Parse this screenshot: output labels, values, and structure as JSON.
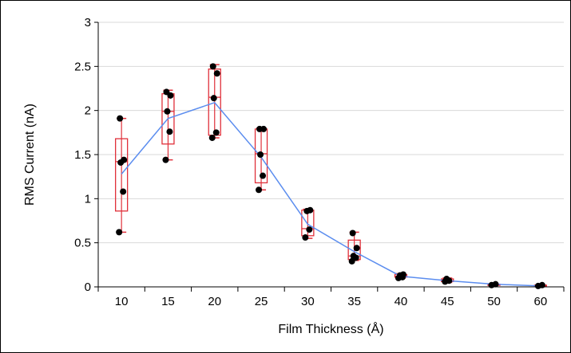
{
  "chart_data": {
    "type": "box",
    "xlabel": "Film Thickness (Å)",
    "ylabel": "RMS Current (nA)",
    "ylim": [
      0,
      3
    ],
    "yticks": [
      0,
      0.5,
      1,
      1.5,
      2,
      2.5,
      3
    ],
    "ytick_labels": [
      "0",
      "0.5",
      "1",
      "1.5",
      "2",
      "2.5",
      "3"
    ],
    "categories": [
      "10",
      "15",
      "20",
      "25",
      "30",
      "35",
      "40",
      "45",
      "50",
      "60"
    ],
    "grid": "horizontal",
    "colors": {
      "box": "#e0303a",
      "mean_line": "#5b8def",
      "points": "#000000",
      "grid": "#d9d9d9"
    },
    "boxes": [
      {
        "category": "10",
        "min": 0.62,
        "q1": 0.86,
        "median": 1.42,
        "q3": 1.68,
        "max": 1.91,
        "mean": 1.28,
        "points": [
          0.62,
          1.08,
          1.41,
          1.44,
          1.91
        ]
      },
      {
        "category": "15",
        "min": 1.44,
        "q1": 1.62,
        "median": 1.99,
        "q3": 2.19,
        "max": 2.23,
        "mean": 1.91,
        "points": [
          1.44,
          1.76,
          1.99,
          2.17,
          2.21
        ]
      },
      {
        "category": "20",
        "min": 1.69,
        "q1": 1.72,
        "median": 2.15,
        "q3": 2.47,
        "max": 2.52,
        "mean": 2.09,
        "points": [
          1.69,
          1.75,
          2.14,
          2.42,
          2.5
        ]
      },
      {
        "category": "25",
        "min": 1.1,
        "q1": 1.18,
        "median": 1.51,
        "q3": 1.79,
        "max": 1.8,
        "mean": 1.47,
        "points": [
          1.1,
          1.26,
          1.5,
          1.79,
          1.79
        ]
      },
      {
        "category": "30",
        "min": 0.55,
        "q1": 0.58,
        "median": 0.66,
        "q3": 0.87,
        "max": 0.88,
        "mean": 0.71,
        "points": [
          0.56,
          0.65,
          0.86,
          0.87
        ]
      },
      {
        "category": "35",
        "min": 0.3,
        "q1": 0.31,
        "median": 0.35,
        "q3": 0.53,
        "max": 0.62,
        "mean": 0.4,
        "points": [
          0.29,
          0.33,
          0.35,
          0.44,
          0.61
        ]
      },
      {
        "category": "40",
        "min": 0.1,
        "q1": 0.11,
        "median": 0.12,
        "q3": 0.14,
        "max": 0.15,
        "mean": 0.12,
        "points": [
          0.1,
          0.11,
          0.13,
          0.14
        ]
      },
      {
        "category": "45",
        "min": 0.05,
        "q1": 0.06,
        "median": 0.07,
        "q3": 0.09,
        "max": 0.1,
        "mean": 0.07,
        "points": [
          0.06,
          0.07,
          0.09
        ]
      },
      {
        "category": "50",
        "min": 0.02,
        "q1": 0.02,
        "median": 0.03,
        "q3": 0.03,
        "max": 0.03,
        "mean": 0.03,
        "points": [
          0.02,
          0.03
        ]
      },
      {
        "category": "60",
        "min": 0.01,
        "q1": 0.01,
        "median": 0.01,
        "q3": 0.02,
        "max": 0.02,
        "mean": 0.01,
        "points": [
          0.01,
          0.02
        ]
      }
    ]
  }
}
